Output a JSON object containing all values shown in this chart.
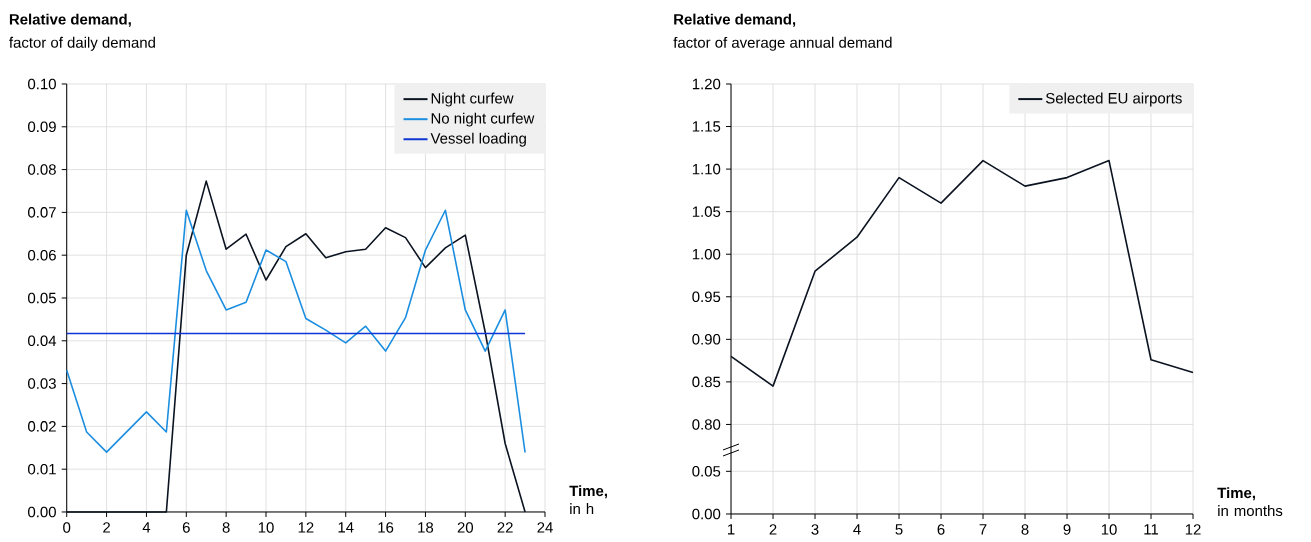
{
  "chart_data": [
    {
      "type": "line",
      "title": "Relative demand,",
      "ylabel": "factor of daily demand",
      "xlabel": "**Time,** in h",
      "x": [
        0,
        1,
        2,
        3,
        4,
        5,
        6,
        7,
        8,
        9,
        10,
        11,
        12,
        13,
        14,
        15,
        16,
        17,
        18,
        19,
        20,
        21,
        22,
        23
      ],
      "series": [
        {
          "name": "Night curfew",
          "color": "#0b1320",
          "values": [
            0,
            0,
            0,
            0,
            0,
            0,
            0.06,
            0.0773,
            0.0614,
            0.0649,
            0.0542,
            0.062,
            0.065,
            0.0594,
            0.0608,
            0.0614,
            0.0664,
            0.0641,
            0.0571,
            0.0617,
            0.0647,
            0.042,
            0.016,
            0
          ]
        },
        {
          "name": "No night curfew",
          "color": "#1b8ee0",
          "values": [
            0.0331,
            0.0187,
            0.014,
            0.0187,
            0.0234,
            0.0187,
            0.0705,
            0.0564,
            0.0472,
            0.049,
            0.0612,
            0.0585,
            0.0452,
            0.0425,
            0.0395,
            0.0434,
            0.0376,
            0.0454,
            0.0612,
            0.0705,
            0.0472,
            0.0376,
            0.0472,
            0.0139
          ]
        },
        {
          "name": "Vessel loading",
          "color": "#0f35d5",
          "x": [
            0,
            23
          ],
          "values": [
            0.0417,
            0.0417
          ]
        }
      ],
      "xlim": [
        0,
        24
      ],
      "xticks": [
        0,
        2,
        4,
        6,
        8,
        10,
        12,
        14,
        16,
        18,
        20,
        22,
        24
      ],
      "ylim": [
        0,
        0.1
      ],
      "yticks": [
        {
          "value": 0,
          "label": "0.00"
        },
        {
          "value": 0.01,
          "label": "0.01"
        },
        {
          "value": 0.02,
          "label": "0.02"
        },
        {
          "value": 0.03,
          "label": "0.03"
        },
        {
          "value": 0.04,
          "label": "0.04"
        },
        {
          "value": 0.05,
          "label": "0.05"
        },
        {
          "value": 0.06,
          "label": "0.06"
        },
        {
          "value": 0.07,
          "label": "0.07"
        },
        {
          "value": 0.08,
          "label": "0.08"
        },
        {
          "value": 0.09,
          "label": "0.09"
        },
        {
          "value": 0.1,
          "label": "0.10"
        }
      ],
      "grid": true,
      "legend": "top right"
    },
    {
      "type": "line",
      "title": "Relative demand,",
      "ylabel": "factor of average annual demand",
      "x": [
        1,
        2,
        3,
        4,
        5,
        6,
        7,
        8,
        9,
        10,
        11,
        12
      ],
      "series": [
        {
          "name": "Selected EU airports",
          "color": "#0b1320",
          "values": [
            0.88,
            0.845,
            0.98,
            1.02,
            1.09,
            1.06,
            1.11,
            1.08,
            1.09,
            1.11,
            0.876,
            0.861
          ]
        }
      ],
      "xlim": [
        1,
        12
      ],
      "xticks": [
        1,
        2,
        3,
        4,
        5,
        6,
        7,
        8,
        9,
        10,
        11,
        12
      ],
      "ylim": [
        0.77,
        1.2
      ],
      "yticks": [
        {
          "value": 0.8,
          "label": "0.80"
        },
        {
          "value": 0.85,
          "label": "0.85"
        },
        {
          "value": 0.9,
          "label": "0.90"
        },
        {
          "value": 0.95,
          "label": "0.95"
        },
        {
          "value": 1.0,
          "label": "1.00"
        },
        {
          "value": 1.05,
          "label": "1.05"
        },
        {
          "value": 1.1,
          "label": "1.10"
        },
        {
          "value": 1.15,
          "label": "1.15"
        },
        {
          "value": 1.2,
          "label": "1.20"
        }
      ],
      "grid": true,
      "legend": "top right",
      "tick_labels": "y"
    },
    {
      "type": "line",
      "xlabel": "**Time,** in months",
      "xlim": [
        1,
        12
      ],
      "xticks": [
        1,
        2,
        3,
        4,
        5,
        6,
        7,
        8,
        9,
        10,
        11,
        12
      ],
      "ylim": [
        0,
        0.075
      ],
      "yticks": [
        {
          "value": 0,
          "label": "0.00"
        },
        {
          "value": 0.05,
          "label": "0.05"
        }
      ],
      "grid": true
    }
  ]
}
